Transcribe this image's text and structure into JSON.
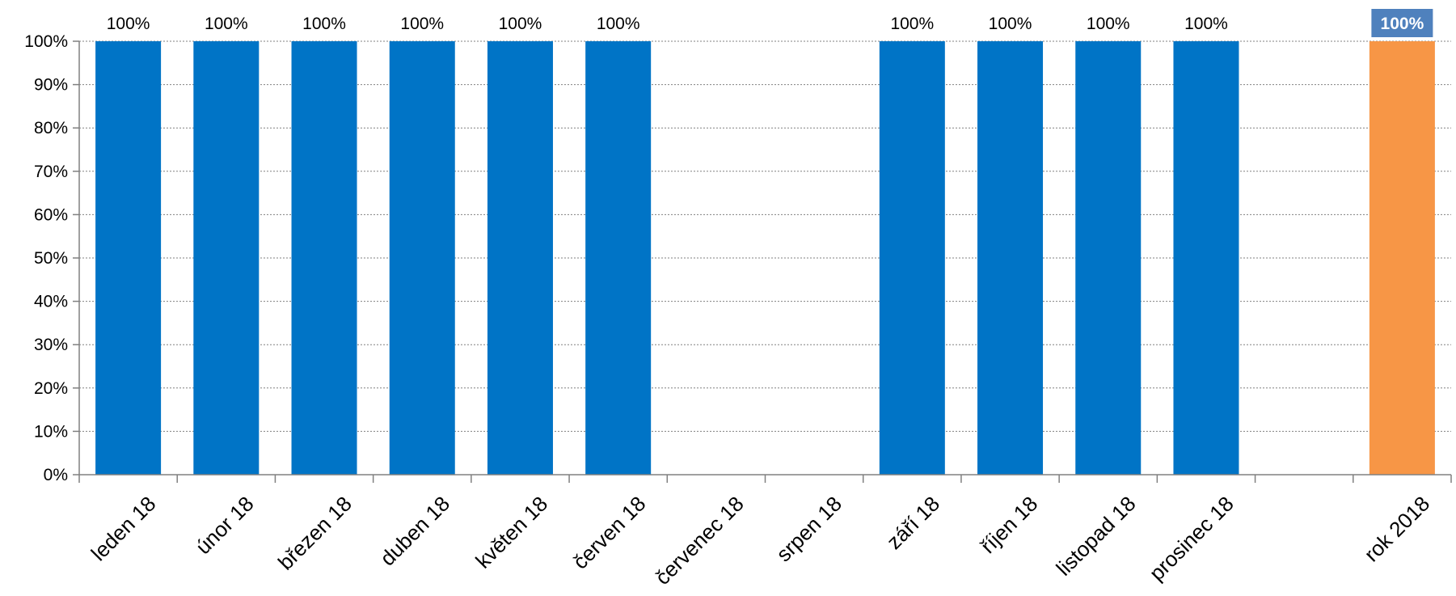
{
  "chart_data": {
    "type": "bar",
    "categories": [
      "leden 18",
      "únor 18",
      "březen 18",
      "duben 18",
      "květen 18",
      "červen 18",
      "červenec 18",
      "srpen 18",
      "září 18",
      "říjen 18",
      "listopad 18",
      "prosinec 18",
      "",
      "rok 2018"
    ],
    "values": [
      100,
      100,
      100,
      100,
      100,
      100,
      null,
      null,
      100,
      100,
      100,
      100,
      null,
      100
    ],
    "data_labels": [
      "100%",
      "100%",
      "100%",
      "100%",
      "100%",
      "100%",
      "",
      "",
      "100%",
      "100%",
      "100%",
      "100%",
      "",
      "100%"
    ],
    "y_ticks": [
      "0%",
      "10%",
      "20%",
      "30%",
      "40%",
      "50%",
      "60%",
      "70%",
      "80%",
      "90%",
      "100%"
    ],
    "ylim": [
      0,
      100
    ],
    "grid": true,
    "colors": {
      "monthly": "#0074C6",
      "annual": "#F79646",
      "annual_label_box": "#4F81BD",
      "axis": "#808080"
    }
  }
}
